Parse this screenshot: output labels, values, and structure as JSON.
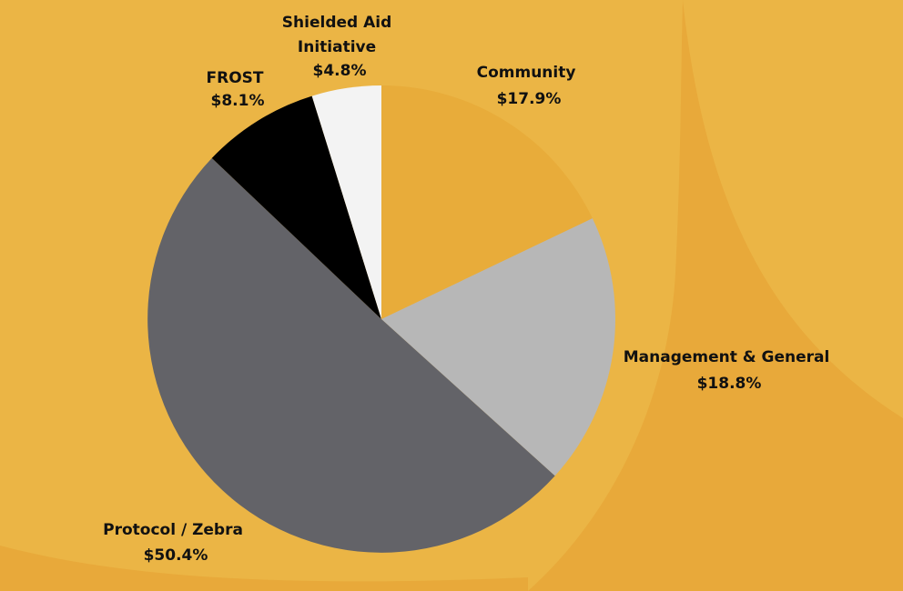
{
  "background_color": "#EBB545",
  "background_accent_color": "#E8A93A",
  "chart_data": {
    "type": "pie",
    "start_angle_deg": 0,
    "direction": "clockwise",
    "slices": [
      {
        "label_lines": [
          "Community",
          "$17.9%"
        ],
        "value": 17.9,
        "color": "#E8AC3A"
      },
      {
        "label_lines": [
          "Management & General",
          "$18.8%"
        ],
        "value": 18.8,
        "color": "#B7B7B7"
      },
      {
        "label_lines": [
          "Protocol / Zebra",
          "$50.4%"
        ],
        "value": 50.4,
        "color": "#636368"
      },
      {
        "label_lines": [
          "FROST",
          "$8.1%"
        ],
        "value": 8.1,
        "color": "#000000"
      },
      {
        "label_lines": [
          "Shielded Aid",
          "Initiative",
          "$4.8%"
        ],
        "value": 4.8,
        "color": "#F3F3F3"
      }
    ]
  }
}
